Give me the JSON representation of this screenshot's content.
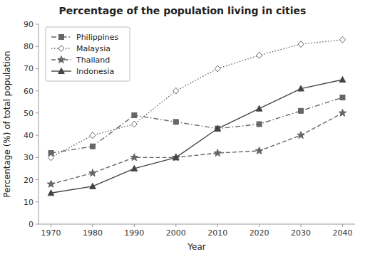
{
  "chart_data": {
    "type": "line",
    "title": "Percentage of the population living in cities",
    "x_label": "Year",
    "y_label": "Percentage (%) of total population",
    "x": [
      1970,
      1980,
      1990,
      2000,
      2010,
      2020,
      2030,
      2040
    ],
    "series": [
      {
        "name": "Philippines",
        "color": "#666666",
        "line_style": "dashdot",
        "marker": "square",
        "values": [
          32,
          35,
          49,
          46,
          43,
          45,
          51,
          57
        ]
      },
      {
        "name": "Malaysia",
        "color": "#666666",
        "line_style": "dotted",
        "marker": "open-diamond",
        "values": [
          30,
          40,
          45,
          60,
          70,
          76,
          81,
          83
        ]
      },
      {
        "name": "Thailand",
        "color": "#666666",
        "line_style": "dashed",
        "marker": "star",
        "values": [
          18,
          23,
          30,
          30,
          32,
          33,
          40,
          50
        ]
      },
      {
        "name": "Indonesia",
        "color": "#444444",
        "line_style": "solid",
        "marker": "triangle",
        "values": [
          14,
          17,
          25,
          30,
          43,
          52,
          61,
          65
        ]
      }
    ],
    "xlim": [
      1967,
      2043
    ],
    "xticks": [
      1970,
      1980,
      1990,
      2000,
      2010,
      2020,
      2030,
      2040
    ],
    "ylim": [
      0,
      90
    ],
    "yticks": [
      0,
      10,
      20,
      30,
      40,
      50,
      60,
      70,
      80,
      90
    ],
    "grid": false,
    "legend": "upper left"
  }
}
